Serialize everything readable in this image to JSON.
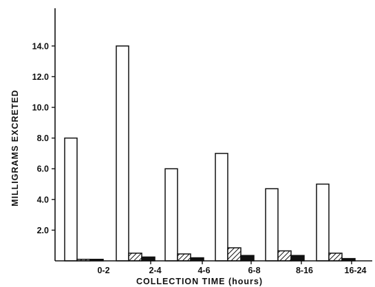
{
  "chart_data": {
    "type": "bar",
    "title": "",
    "xlabel": "COLLECTION  TIME  (hours)",
    "ylabel": "MILLIGRAMS  EXCRETED",
    "categories": [
      "0-2",
      "2-4",
      "4-6",
      "6-8",
      "8-16",
      "16-24"
    ],
    "ylim": [
      0,
      16
    ],
    "yticks": [
      2.0,
      4.0,
      6.0,
      8.0,
      10.0,
      12.0,
      14.0
    ],
    "ytick_labels": [
      "2.0",
      "4.0",
      "6.0",
      "8.0",
      "10.0",
      "12.0",
      "14.0"
    ],
    "grid": false,
    "legend": "none",
    "series": [
      {
        "fill": "open",
        "values": [
          8.0,
          14.0,
          6.0,
          7.0,
          4.7,
          5.0
        ]
      },
      {
        "fill": "hatched",
        "values": [
          0.1,
          0.5,
          0.45,
          0.85,
          0.65,
          0.5
        ]
      },
      {
        "fill": "solid",
        "values": [
          0.1,
          0.25,
          0.2,
          0.35,
          0.35,
          0.15
        ]
      }
    ]
  }
}
